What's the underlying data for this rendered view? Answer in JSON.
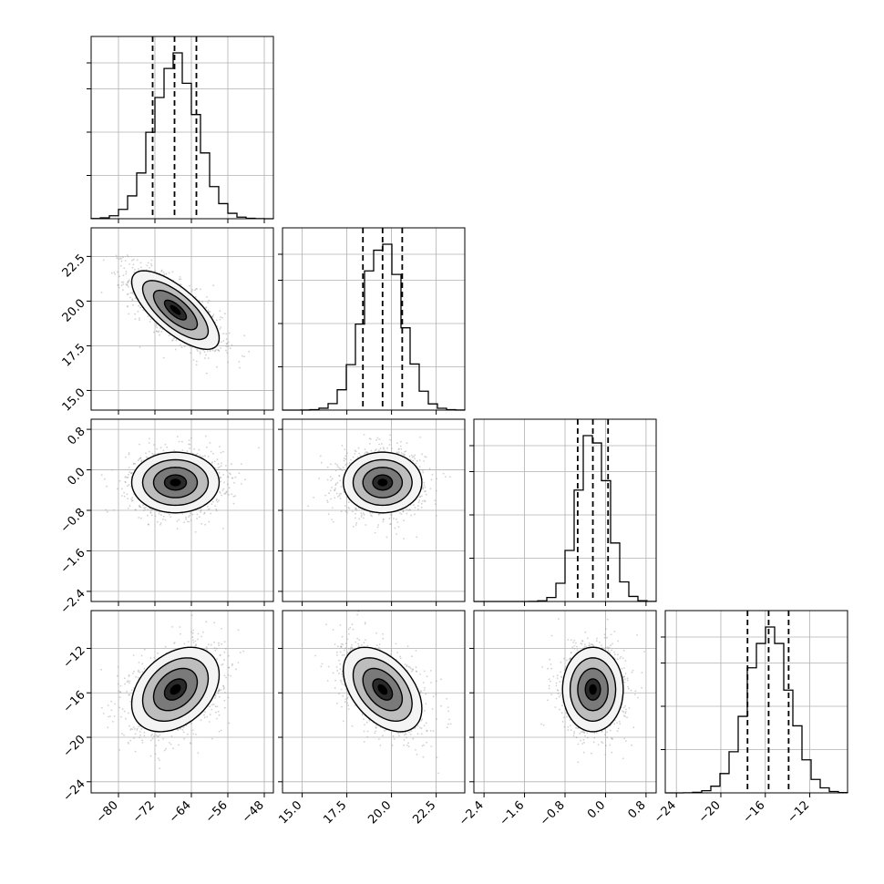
{
  "chart_data": {
    "type": "corner",
    "grid": true,
    "parameters": [
      {
        "index": 0,
        "range": [
          -86,
          -46
        ],
        "ticks": [
          -80,
          -72,
          -64,
          -56,
          -48
        ],
        "tick_labels": [
          "−80",
          "−72",
          "−64",
          "−56",
          "−48"
        ],
        "mean": -67.5,
        "sd": 4.8,
        "quantiles": [
          -72.5,
          -67.7,
          -62.9
        ]
      },
      {
        "index": 1,
        "range": [
          13.9,
          24.1
        ],
        "ticks": [
          15.0,
          17.5,
          20.0,
          22.5
        ],
        "tick_labels": [
          "15.0",
          "17.5",
          "20.0",
          "22.5"
        ],
        "mean": 19.5,
        "sd": 1.1,
        "quantiles": [
          18.4,
          19.5,
          20.6
        ]
      },
      {
        "index": 2,
        "range": [
          -2.6,
          1.0
        ],
        "ticks": [
          -2.4,
          -1.6,
          -0.8,
          0.0,
          0.8
        ],
        "tick_labels": [
          "−2.4",
          "−1.6",
          "−0.8",
          "0.0",
          "0.8"
        ],
        "mean": -0.25,
        "sd": 0.3,
        "quantiles": [
          -0.55,
          -0.25,
          0.05
        ]
      },
      {
        "index": 3,
        "range": [
          -25,
          -8.6
        ],
        "ticks": [
          -24,
          -20,
          -16,
          -12
        ],
        "tick_labels": [
          "−24",
          "−20",
          "−16",
          "−12"
        ],
        "mean": -15.7,
        "sd": 1.9,
        "quantiles": [
          -17.6,
          -15.7,
          -13.9
        ]
      }
    ],
    "correlations": [
      {
        "pair": [
          0,
          1
        ],
        "r": -0.72
      },
      {
        "pair": [
          0,
          2
        ],
        "r": 0.0
      },
      {
        "pair": [
          1,
          2
        ],
        "r": 0.0
      },
      {
        "pair": [
          0,
          3
        ],
        "r": 0.35
      },
      {
        "pair": [
          1,
          3
        ],
        "r": -0.45
      },
      {
        "pair": [
          2,
          3
        ],
        "r": 0.0
      }
    ],
    "contour_levels_sigma": [
      0.5,
      1.0,
      1.5,
      2.0
    ],
    "histogram_bins": 20,
    "colors": {
      "samples": "#9a9a9a",
      "density_dark": "#000000",
      "density_light": "#f4f4f4",
      "contour": "#000000",
      "histogram": "#000000",
      "quantile_line": "#000000",
      "grid": "#b0b0b0"
    }
  }
}
